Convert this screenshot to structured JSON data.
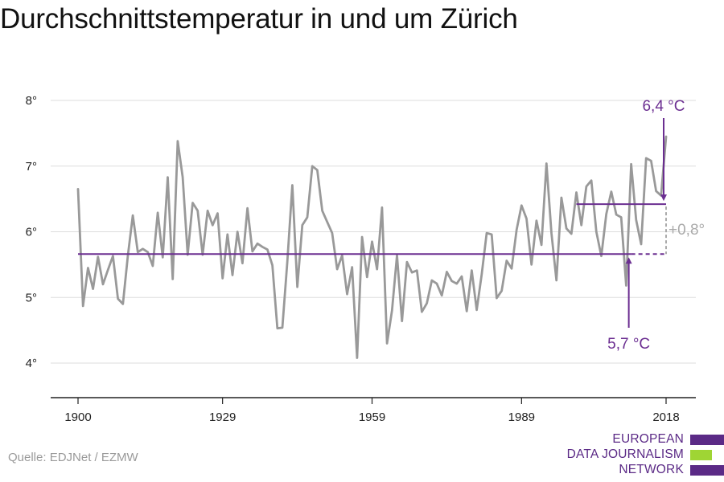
{
  "chart_data": {
    "type": "line",
    "title": "Durchschnittstemperatur in und um Zürich",
    "xlabel": "",
    "ylabel": "",
    "xlim": [
      1895,
      2024
    ],
    "ylim": [
      3.5,
      8.5
    ],
    "xticks": [
      1900,
      1929,
      1959,
      1989,
      2018
    ],
    "yticks": [
      4,
      5,
      6,
      7,
      8
    ],
    "ytick_labels": [
      "4°",
      "5°",
      "6°",
      "7°",
      "8°"
    ],
    "grid": true,
    "series": [
      {
        "x": [
          1900,
          1901,
          1902,
          1903,
          1904,
          1905,
          1906,
          1907,
          1908,
          1909,
          1910,
          1911,
          1912,
          1913,
          1914,
          1915,
          1916,
          1917,
          1918,
          1919,
          1920,
          1921,
          1922,
          1923,
          1924,
          1925,
          1926,
          1927,
          1928,
          1929,
          1930,
          1931,
          1932,
          1933,
          1934,
          1935,
          1936,
          1937,
          1938,
          1939,
          1940,
          1941,
          1942,
          1943,
          1944,
          1945,
          1946,
          1947,
          1948,
          1949,
          1950,
          1951,
          1952,
          1953,
          1954,
          1955,
          1956,
          1957,
          1958,
          1959,
          1960,
          1961,
          1962,
          1963,
          1964,
          1965,
          1966,
          1967,
          1968,
          1969,
          1970,
          1971,
          1972,
          1973,
          1974,
          1975,
          1976,
          1977,
          1978,
          1979,
          1980,
          1981,
          1982,
          1983,
          1984,
          1985,
          1986,
          1987,
          1988,
          1989,
          1990,
          1991,
          1992,
          1993,
          1994,
          1995,
          1996,
          1997,
          1998,
          1999,
          2000,
          2001,
          2002,
          2003,
          2004,
          2005,
          2006,
          2007,
          2008,
          2009,
          2010,
          2011,
          2012,
          2013,
          2014,
          2015,
          2016,
          2017,
          2018
        ],
        "values": [
          6.65,
          4.87,
          5.45,
          5.13,
          5.62,
          5.2,
          5.42,
          5.63,
          4.98,
          4.9,
          5.63,
          6.25,
          5.69,
          5.74,
          5.69,
          5.48,
          6.29,
          5.61,
          6.83,
          5.28,
          7.38,
          6.83,
          5.65,
          6.44,
          6.32,
          5.65,
          6.32,
          6.1,
          6.28,
          5.29,
          5.96,
          5.34,
          6.0,
          5.52,
          6.36,
          5.7,
          5.82,
          5.77,
          5.73,
          5.49,
          4.53,
          4.54,
          5.55,
          6.71,
          5.16,
          6.1,
          6.22,
          7.0,
          6.94,
          6.32,
          6.15,
          5.98,
          5.43,
          5.64,
          5.05,
          5.46,
          4.08,
          5.92,
          5.31,
          5.85,
          5.43,
          6.37,
          4.3,
          4.8,
          5.64,
          4.64,
          5.54,
          5.38,
          5.41,
          4.78,
          4.91,
          5.26,
          5.21,
          5.03,
          5.39,
          5.25,
          5.21,
          5.32,
          4.79,
          5.41,
          4.81,
          5.35,
          5.98,
          5.96,
          4.99,
          5.1,
          5.56,
          5.44,
          6.03,
          6.4,
          6.2,
          5.5,
          6.17,
          5.8,
          7.04,
          5.98,
          5.26,
          6.52,
          6.05,
          5.97,
          6.6,
          6.1,
          6.69,
          6.78,
          6.0,
          5.63,
          6.27,
          6.61,
          6.26,
          6.22,
          5.18,
          7.03,
          6.18,
          5.81,
          7.12,
          7.08,
          6.62,
          6.55,
          7.45
        ]
      }
    ],
    "annotations": {
      "baseline_label": "5,7 °C",
      "recent_label": "6,4 °C",
      "difference_label": "+0,8°",
      "baseline_value": 5.66,
      "recent_value": 6.42,
      "baseline_x_end": 2011,
      "recent_x_start": 2000,
      "annotation_x": 2018
    },
    "colors": {
      "series": "#999999",
      "accent": "#6b2e91",
      "grid": "#dddddd",
      "axis": "#222222",
      "difference": "#aaaaaa"
    }
  },
  "source": "Quelle: EDJNet / EZMW",
  "logo": {
    "lines": [
      "EUROPEAN",
      "DATA JOURNALISM",
      "NETWORK"
    ],
    "colors": {
      "purple": "#5b2a86",
      "green": "#9fd534"
    }
  }
}
